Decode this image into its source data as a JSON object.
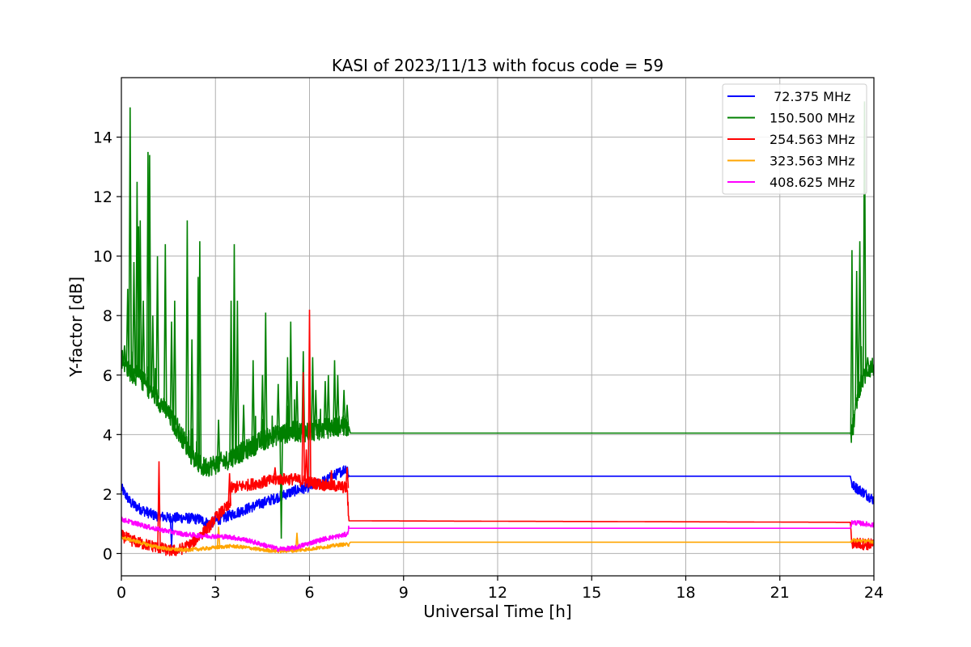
{
  "chart_data": {
    "type": "line",
    "title": "KASI of 2023/11/13 with focus code = 59",
    "xlabel": "Universal Time [h]",
    "ylabel": "Y-factor [dB]",
    "xlim": [
      0,
      24
    ],
    "ylim": [
      -0.75,
      16
    ],
    "xticks": [
      0,
      3,
      6,
      9,
      12,
      15,
      18,
      21,
      24
    ],
    "yticks": [
      0,
      2,
      4,
      6,
      8,
      10,
      12,
      14
    ],
    "grid": true,
    "legend_position": "top-right",
    "series": [
      {
        "name": " 72.375 MHz",
        "color": "#0000ff",
        "points": [
          [
            0,
            2.2
          ],
          [
            0.3,
            1.7
          ],
          [
            0.6,
            1.5
          ],
          [
            1.0,
            1.3
          ],
          [
            1.5,
            1.2
          ],
          [
            2.0,
            1.2
          ],
          [
            2.5,
            1.15
          ],
          [
            2.8,
            1.0
          ],
          [
            3.0,
            1.1
          ],
          [
            3.5,
            1.3
          ],
          [
            4.0,
            1.5
          ],
          [
            4.5,
            1.7
          ],
          [
            5.0,
            1.9
          ],
          [
            5.5,
            2.1
          ],
          [
            6.0,
            2.25
          ],
          [
            6.5,
            2.45
          ],
          [
            7.0,
            2.75
          ],
          [
            7.2,
            2.9
          ],
          [
            7.25,
            2.6
          ],
          [
            23.25,
            2.6
          ],
          [
            23.3,
            2.3
          ],
          [
            23.6,
            2.1
          ],
          [
            24,
            1.8
          ]
        ],
        "spikes": [
          [
            1.6,
            0.2
          ],
          [
            2.8,
            0.9
          ]
        ]
      },
      {
        "name": "150.500 MHz",
        "color": "#008000",
        "points": [
          [
            0,
            6.6
          ],
          [
            0.3,
            6.1
          ],
          [
            0.6,
            5.9
          ],
          [
            1.0,
            5.4
          ],
          [
            1.3,
            5.0
          ],
          [
            1.6,
            4.5
          ],
          [
            2.0,
            3.8
          ],
          [
            2.3,
            3.2
          ],
          [
            2.6,
            2.9
          ],
          [
            3.0,
            3.0
          ],
          [
            3.3,
            3.1
          ],
          [
            3.6,
            3.3
          ],
          [
            4.0,
            3.5
          ],
          [
            4.5,
            3.8
          ],
          [
            5.0,
            4.0
          ],
          [
            5.5,
            4.1
          ],
          [
            6.0,
            4.1
          ],
          [
            6.5,
            4.2
          ],
          [
            7.0,
            4.3
          ],
          [
            7.25,
            4.3
          ],
          [
            7.3,
            4.05
          ],
          [
            23.25,
            4.05
          ],
          [
            23.3,
            4.0
          ],
          [
            23.5,
            5.5
          ],
          [
            23.8,
            6.2
          ],
          [
            24,
            6.3
          ]
        ],
        "spikes": [
          [
            0.1,
            7.0
          ],
          [
            0.2,
            8.9
          ],
          [
            0.28,
            15.0
          ],
          [
            0.4,
            9.8
          ],
          [
            0.5,
            12.5
          ],
          [
            0.55,
            11.0
          ],
          [
            0.6,
            11.2
          ],
          [
            0.7,
            8.5
          ],
          [
            0.85,
            13.5
          ],
          [
            0.9,
            13.4
          ],
          [
            1.0,
            8.0
          ],
          [
            1.15,
            10.0
          ],
          [
            1.4,
            10.4
          ],
          [
            1.6,
            7.8
          ],
          [
            1.7,
            8.5
          ],
          [
            2.1,
            11.2
          ],
          [
            2.25,
            7.2
          ],
          [
            2.45,
            9.3
          ],
          [
            2.5,
            10.5
          ],
          [
            3.1,
            4.5
          ],
          [
            3.5,
            8.5
          ],
          [
            3.6,
            10.4
          ],
          [
            3.7,
            8.5
          ],
          [
            3.9,
            5.0
          ],
          [
            4.2,
            6.5
          ],
          [
            4.5,
            6.0
          ],
          [
            4.6,
            8.1
          ],
          [
            5.0,
            5.7
          ],
          [
            5.1,
            0.5
          ],
          [
            5.3,
            6.6
          ],
          [
            5.4,
            7.8
          ],
          [
            5.6,
            5.8
          ],
          [
            5.8,
            6.8
          ],
          [
            6.1,
            6.6
          ],
          [
            6.2,
            5.5
          ],
          [
            6.5,
            5.8
          ],
          [
            6.6,
            6.0
          ],
          [
            6.8,
            6.5
          ],
          [
            6.9,
            6.0
          ],
          [
            7.1,
            5.5
          ],
          [
            7.2,
            5.0
          ],
          [
            23.3,
            10.2
          ],
          [
            23.45,
            9.5
          ],
          [
            23.55,
            10.5
          ],
          [
            23.7,
            15.2
          ],
          [
            23.8,
            6.6
          ]
        ]
      },
      {
        "name": "254.563 MHz",
        "color": "#ff0000",
        "points": [
          [
            0,
            0.6
          ],
          [
            0.3,
            0.45
          ],
          [
            0.6,
            0.35
          ],
          [
            1.0,
            0.25
          ],
          [
            1.2,
            0.2
          ],
          [
            1.5,
            0.1
          ],
          [
            1.8,
            0.1
          ],
          [
            2.2,
            0.3
          ],
          [
            2.5,
            0.6
          ],
          [
            2.8,
            0.9
          ],
          [
            3.0,
            1.2
          ],
          [
            3.3,
            1.5
          ],
          [
            3.45,
            1.6
          ],
          [
            3.5,
            2.2
          ],
          [
            4.0,
            2.3
          ],
          [
            4.5,
            2.4
          ],
          [
            5.0,
            2.5
          ],
          [
            5.5,
            2.5
          ],
          [
            6.0,
            2.4
          ],
          [
            6.5,
            2.3
          ],
          [
            7.0,
            2.25
          ],
          [
            7.2,
            2.2
          ],
          [
            7.25,
            1.1
          ],
          [
            23.25,
            1.05
          ],
          [
            23.3,
            0.35
          ],
          [
            24,
            0.3
          ]
        ],
        "spikes": [
          [
            1.2,
            3.1
          ],
          [
            3.45,
            2.7
          ],
          [
            4.9,
            2.9
          ],
          [
            5.8,
            6.1
          ],
          [
            5.9,
            3.5
          ],
          [
            6.0,
            8.2
          ],
          [
            6.7,
            2.8
          ],
          [
            7.2,
            2.9
          ]
        ]
      },
      {
        "name": "323.563 MHz",
        "color": "#ffa500",
        "points": [
          [
            0,
            0.55
          ],
          [
            0.5,
            0.4
          ],
          [
            1.0,
            0.25
          ],
          [
            1.5,
            0.15
          ],
          [
            2.0,
            0.12
          ],
          [
            2.5,
            0.15
          ],
          [
            3.0,
            0.2
          ],
          [
            3.5,
            0.25
          ],
          [
            4.0,
            0.2
          ],
          [
            4.5,
            0.12
          ],
          [
            5.0,
            0.08
          ],
          [
            5.5,
            0.1
          ],
          [
            6.0,
            0.15
          ],
          [
            6.5,
            0.22
          ],
          [
            7.0,
            0.3
          ],
          [
            7.25,
            0.3
          ],
          [
            7.3,
            0.38
          ],
          [
            23.25,
            0.38
          ],
          [
            23.3,
            0.45
          ],
          [
            24,
            0.4
          ]
        ],
        "spikes": [
          [
            3.1,
            0.9
          ],
          [
            5.6,
            0.7
          ]
        ]
      },
      {
        "name": "408.625 MHz",
        "color": "#ff00ff",
        "points": [
          [
            0,
            1.15
          ],
          [
            0.5,
            1.0
          ],
          [
            1.0,
            0.85
          ],
          [
            1.5,
            0.75
          ],
          [
            2.0,
            0.65
          ],
          [
            2.5,
            0.6
          ],
          [
            3.0,
            0.58
          ],
          [
            3.5,
            0.55
          ],
          [
            4.0,
            0.45
          ],
          [
            4.5,
            0.3
          ],
          [
            5.0,
            0.15
          ],
          [
            5.5,
            0.18
          ],
          [
            6.0,
            0.35
          ],
          [
            6.5,
            0.5
          ],
          [
            7.0,
            0.6
          ],
          [
            7.2,
            0.65
          ],
          [
            7.25,
            0.85
          ],
          [
            23.25,
            0.85
          ],
          [
            23.3,
            1.05
          ],
          [
            23.7,
            1.0
          ],
          [
            24,
            0.95
          ]
        ],
        "spikes": []
      }
    ]
  }
}
